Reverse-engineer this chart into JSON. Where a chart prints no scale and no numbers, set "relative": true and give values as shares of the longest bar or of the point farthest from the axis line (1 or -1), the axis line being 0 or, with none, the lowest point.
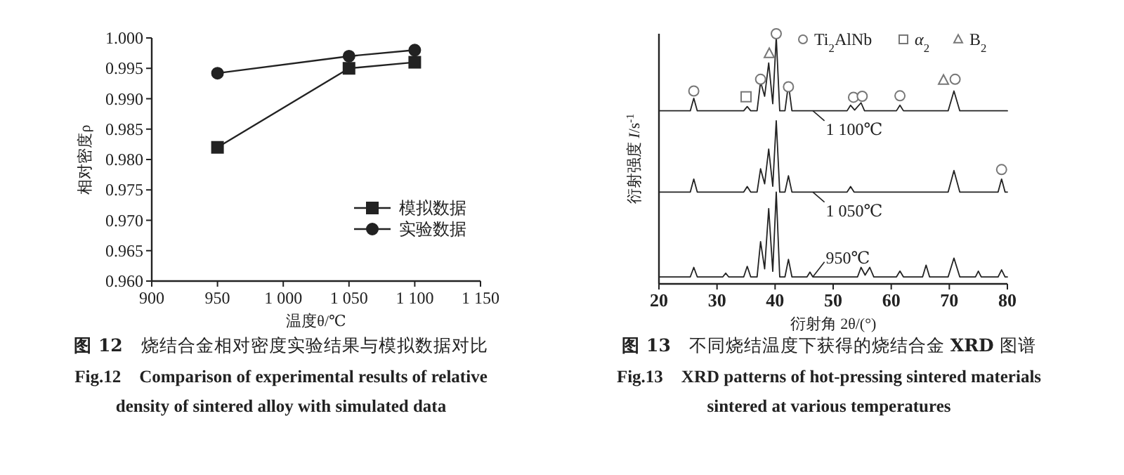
{
  "chart_data": [
    {
      "type": "line",
      "title": "**图 12**　烧结合金相对密度实验结果与模拟数据对比",
      "subtitle": "**Fig.12　Comparison of experimental results of relative density of sintered alloy with simulated data**",
      "xlabel": "温度θ/℃",
      "ylabel": "相对密度ρ",
      "x": [
        950,
        1050,
        1100
      ],
      "series": [
        {
          "name": "模拟数据",
          "color": "#222222",
          "marker": "square",
          "values": [
            0.982,
            0.995,
            0.996
          ]
        },
        {
          "name": "实验数据",
          "color": "#222222",
          "marker": "circle",
          "values": [
            0.9942,
            0.997,
            0.998
          ]
        }
      ],
      "xlim": [
        900,
        1150
      ],
      "xticks": [
        900,
        950,
        {
          "value": 1000,
          "label": "1 000"
        },
        {
          "value": 1050,
          "label": "1 050"
        },
        {
          "value": 1100,
          "label": "1 100"
        },
        {
          "value": 1150,
          "label": "1 150"
        }
      ],
      "ylim": [
        0.96,
        1.0
      ],
      "yticks": [
        {
          "value": 0.96,
          "label": "0.960"
        },
        {
          "value": 0.965,
          "label": "0.965"
        },
        {
          "value": 0.97,
          "label": "0.970"
        },
        {
          "value": 0.975,
          "label": "0.975"
        },
        {
          "value": 0.98,
          "label": "0.980"
        },
        {
          "value": 0.985,
          "label": "0.985"
        },
        {
          "value": 0.99,
          "label": "0.990"
        },
        {
          "value": 0.995,
          "label": "0.995"
        },
        {
          "value": 1.0,
          "label": "1.000"
        }
      ],
      "legend": "bottom right",
      "grid": false,
      "line_style": "solid"
    },
    {
      "type": "line",
      "title": "**图 13**　不同烧结温度下获得的烧结合金 **XRD** 图谱",
      "subtitle": "**Fig.13　XRD patterns of hot-pressing sintered materials sintered at various temperatures**",
      "xlabel": "衍射角 2θ/(°)",
      "ylabel": "衍射强度 *I*/s$^{-1}$",
      "relative": true,
      "xlim": [
        20,
        80
      ],
      "xticks": [
        20,
        30,
        40,
        50,
        60,
        70,
        80
      ],
      "legend": "top right",
      "grid": false,
      "series": [
        {
          "name": "1 100℃",
          "color": "#222222",
          "marker": "none",
          "x": [
            20,
            25.4,
            26,
            26.6,
            34.6,
            35.2,
            35.8,
            36.9,
            37.5,
            38.2,
            38.9,
            39.6,
            40.2,
            40.8,
            41.7,
            42.3,
            42.9,
            52.4,
            53,
            53.7,
            54.8,
            55.4,
            60.9,
            61.5,
            62.1,
            69.8,
            70.8,
            71.8,
            80
          ],
          "values": [
            0.692,
            0.692,
            0.742,
            0.692,
            0.692,
            0.709,
            0.692,
            0.692,
            0.808,
            0.75,
            0.883,
            0.72,
            0.987,
            0.692,
            0.692,
            0.799,
            0.692,
            0.692,
            0.714,
            0.695,
            0.724,
            0.692,
            0.692,
            0.714,
            0.692,
            0.692,
            0.771,
            0.692,
            0.692
          ]
        },
        {
          "name": "1 050℃",
          "color": "#222222",
          "marker": "none",
          "x": [
            20,
            25.4,
            26,
            26.6,
            34.6,
            35.2,
            35.8,
            36.9,
            37.5,
            38.2,
            38.9,
            39.6,
            40.2,
            40.8,
            41.7,
            42.3,
            42.9,
            52.4,
            53,
            53.6,
            69.8,
            70.8,
            71.8,
            78.4,
            79,
            79.6,
            80
          ],
          "values": [
            0.367,
            0.367,
            0.419,
            0.367,
            0.367,
            0.389,
            0.367,
            0.367,
            0.46,
            0.4,
            0.539,
            0.39,
            0.652,
            0.367,
            0.367,
            0.432,
            0.367,
            0.367,
            0.389,
            0.367,
            0.367,
            0.453,
            0.367,
            0.367,
            0.419,
            0.367,
            0.367
          ]
        },
        {
          "name": "950℃",
          "color": "#222222",
          "marker": "none",
          "x": [
            20,
            25.4,
            26,
            26.6,
            31,
            31.5,
            32,
            34.6,
            35.2,
            35.8,
            36.9,
            37.5,
            38.2,
            38.9,
            39.6,
            40.2,
            40.8,
            41.7,
            42.3,
            42.9,
            45.5,
            46,
            46.5,
            54.2,
            54.8,
            55.5,
            56.3,
            57,
            60.9,
            61.5,
            62.1,
            65.4,
            66,
            66.6,
            69.8,
            70.8,
            71.8,
            74.5,
            75,
            75.5,
            78.4,
            79,
            79.6,
            80
          ],
          "values": [
            0.028,
            0.028,
            0.066,
            0.028,
            0.028,
            0.043,
            0.028,
            0.028,
            0.07,
            0.028,
            0.028,
            0.169,
            0.06,
            0.301,
            0.05,
            0.367,
            0.028,
            0.028,
            0.098,
            0.028,
            0.028,
            0.047,
            0.028,
            0.028,
            0.066,
            0.035,
            0.066,
            0.028,
            0.028,
            0.051,
            0.028,
            0.028,
            0.075,
            0.028,
            0.028,
            0.103,
            0.028,
            0.028,
            0.051,
            0.028,
            0.028,
            0.056,
            0.028,
            0.028
          ]
        },
        {
          "name": "Ti$_{2}$AlNb",
          "type": "scatter",
          "marker": "circle",
          "color": "#777777",
          "x": [
            26,
            37.5,
            40.2,
            42.3,
            53.5,
            55,
            61.5,
            71,
            79
          ],
          "values": [
            0.771,
            0.818,
            1.0,
            0.788,
            0.746,
            0.75,
            0.752,
            0.818,
            0.457
          ]
        },
        {
          "name": "*α*$_{2}$",
          "type": "scatter",
          "marker": "square",
          "color": "#777777",
          "x": [
            35
          ],
          "values": [
            0.748
          ]
        },
        {
          "name": "B$_{2}$",
          "type": "scatter",
          "marker": "triangle",
          "color": "#777777",
          "x": [
            39,
            69
          ],
          "values": [
            0.921,
            0.814
          ]
        }
      ]
    }
  ]
}
